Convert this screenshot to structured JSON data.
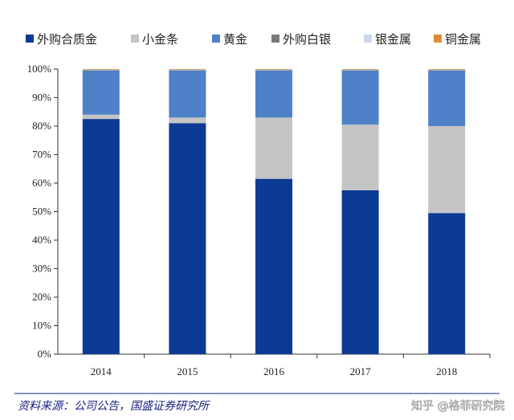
{
  "chart_data": {
    "type": "bar",
    "stacked": true,
    "categories": [
      "2014",
      "2015",
      "2016",
      "2017",
      "2018"
    ],
    "series": [
      {
        "name": "外购合质金",
        "color": "#0d3a94",
        "values": [
          82.5,
          81,
          61.5,
          57.5,
          49.5
        ]
      },
      {
        "name": "小金条",
        "color": "#c4c4c4",
        "values": [
          1.5,
          2,
          21.5,
          23,
          30.5
        ]
      },
      {
        "name": "黄金",
        "color": "#4f81c8",
        "values": [
          15.5,
          16.5,
          16.5,
          19,
          19.5
        ]
      },
      {
        "name": "外购白银",
        "color": "#7a7a7a",
        "values": [
          0.2,
          0.2,
          0.2,
          0.2,
          0.2
        ]
      },
      {
        "name": "银金属",
        "color": "#c9d9ee",
        "values": [
          0.1,
          0.1,
          0.1,
          0.1,
          0.1
        ]
      },
      {
        "name": "铜金属",
        "color": "#e08a3c",
        "values": [
          0.2,
          0.2,
          0.2,
          0.2,
          0.2
        ]
      }
    ],
    "ylim": [
      0,
      100
    ],
    "yticks": [
      "0%",
      "10%",
      "20%",
      "30%",
      "40%",
      "50%",
      "60%",
      "70%",
      "80%",
      "90%",
      "100%"
    ],
    "legend_position": "top",
    "grid": false
  },
  "source": "资料来源：公司公告，国盛证券研究所",
  "watermark": "知乎 @格菲研究院"
}
